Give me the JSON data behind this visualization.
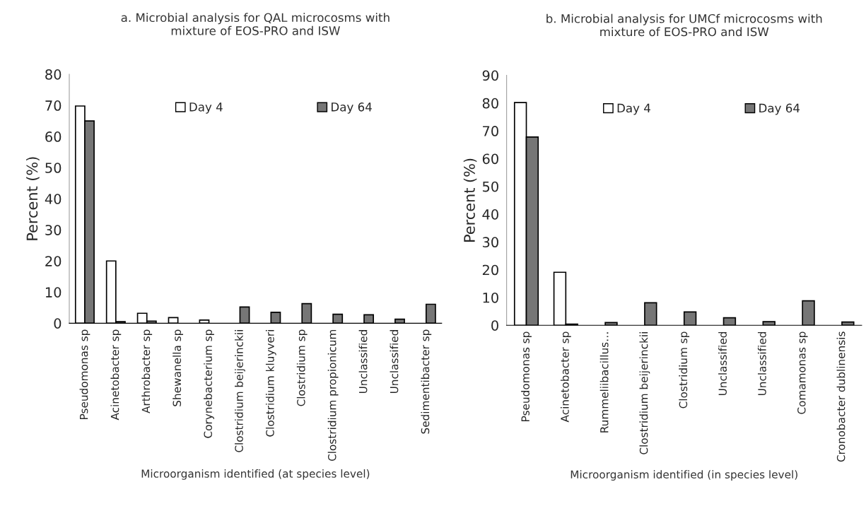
{
  "chart_data": [
    {
      "type": "bar",
      "title": "a. Microbial analysis for QAL microcosms with\nmixture of EOS-PRO and ISW",
      "xlabel": "Microorganism identified (at species level)",
      "ylabel": "Percent (%)",
      "categories": [
        "Pseudomonas sp",
        "Acinetobacter sp",
        "Arthrobacter sp",
        "Shewanella sp",
        "Corynebacterium sp",
        "Clostridium beijerinckii",
        "Clostridium kluyveri",
        "Clostridium sp",
        "Clostridium propionicum",
        "Unclassified",
        "Unclassified",
        "Sedimentibacter sp"
      ],
      "series": [
        {
          "name": "Day 4",
          "color": "#ffffff",
          "values": [
            69.8,
            20,
            3.2,
            1.8,
            1.0,
            null,
            null,
            null,
            null,
            null,
            null,
            null
          ]
        },
        {
          "name": "Day 64",
          "color": "#767676",
          "values": [
            65,
            0.5,
            0.7,
            null,
            null,
            5.2,
            3.5,
            6.3,
            2.9,
            2.7,
            1.3,
            6.1
          ]
        }
      ],
      "ylim": [
        0,
        80
      ],
      "yticks": [
        0,
        10,
        20,
        30,
        40,
        50,
        60,
        70,
        80
      ],
      "legend": "top",
      "grid": false
    },
    {
      "type": "bar",
      "title": "b. Microbial analysis for UMCf microcosms with\nmixture of EOS-PRO and ISW",
      "xlabel": "Microorganism identified (in species level)",
      "ylabel": "Percent (%)",
      "categories": [
        "Pseudomonas sp",
        "Acinetobacter sp",
        "Rummeliibacillus…",
        "Clostridium beijerinckii",
        "Clostridium sp",
        "Unclassified",
        "Unclassified",
        "Comamonas sp",
        "Cronobacter dublinensis"
      ],
      "series": [
        {
          "name": "Day 4",
          "color": "#ffffff",
          "values": [
            80.2,
            19.1,
            null,
            null,
            null,
            null,
            null,
            null,
            null
          ]
        },
        {
          "name": "Day 64",
          "color": "#767676",
          "values": [
            67.8,
            0.4,
            1.0,
            8.1,
            4.8,
            2.7,
            1.3,
            8.8,
            1.2
          ]
        }
      ],
      "ylim": [
        0,
        90
      ],
      "yticks": [
        0,
        10,
        20,
        30,
        40,
        50,
        60,
        70,
        80,
        90
      ],
      "legend": "top",
      "grid": false
    }
  ]
}
